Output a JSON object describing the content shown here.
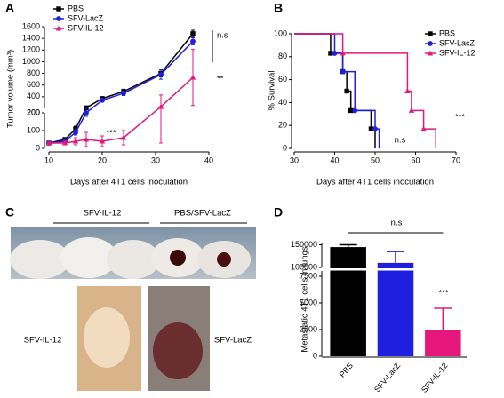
{
  "chart_data": [
    {
      "type": "line",
      "panel": "A",
      "xlabel": "Days after 4T1 cells inoculation",
      "ylabel": "Tumor volume (mm³)",
      "x": [
        10,
        13,
        15,
        17,
        20,
        24,
        31,
        37
      ],
      "xlim": [
        10,
        40
      ],
      "xticks": [
        10,
        20,
        30,
        40
      ],
      "y_segments": [
        {
          "ylim": [
            0,
            200
          ],
          "yticks": [
            0,
            100,
            200
          ]
        },
        {
          "ylim": [
            200,
            1600
          ],
          "yticks": [
            200,
            400,
            600,
            800,
            1000,
            1200,
            1400,
            1600
          ]
        }
      ],
      "series": [
        {
          "name": "PBS",
          "color": "#000000",
          "marker": "square",
          "values": [
            30,
            50,
            110,
            210,
            370,
            490,
            800,
            1480
          ],
          "errors": [
            5,
            10,
            15,
            20,
            25,
            40,
            60,
            60
          ]
        },
        {
          "name": "SFV-LacZ",
          "color": "#1f1fe0",
          "marker": "circle",
          "values": [
            30,
            40,
            90,
            200,
            340,
            460,
            780,
            1350
          ],
          "errors": [
            5,
            10,
            15,
            20,
            25,
            40,
            80,
            60
          ]
        },
        {
          "name": "SFV-IL-12",
          "color": "#e6177b",
          "marker": "triangle",
          "values": [
            30,
            30,
            40,
            50,
            40,
            60,
            230,
            730
          ],
          "errors": [
            5,
            10,
            20,
            40,
            30,
            40,
            200,
            480
          ]
        }
      ],
      "annotations": [
        "n.s",
        "**",
        "***"
      ]
    },
    {
      "type": "step",
      "panel": "B",
      "xlabel": "Days after 4T1 cells inoculation",
      "ylabel": "% Survival",
      "xlim": [
        30,
        70
      ],
      "xticks": [
        30,
        40,
        50,
        60,
        70
      ],
      "ylim": [
        0,
        100
      ],
      "yticks": [
        0,
        20,
        40,
        60,
        80,
        100
      ],
      "series": [
        {
          "name": "PBS",
          "color": "#000000",
          "marker": "square",
          "x": [
            30,
            39,
            42,
            43,
            44,
            49,
            50
          ],
          "values": [
            100,
            83,
            67,
            50,
            33,
            17,
            0
          ]
        },
        {
          "name": "SFV-LacZ",
          "color": "#1f1fe0",
          "marker": "circle",
          "x": [
            30,
            40,
            42,
            45,
            50,
            51
          ],
          "values": [
            100,
            83,
            67,
            33,
            17,
            0
          ]
        },
        {
          "name": "SFV-IL-12",
          "color": "#e6177b",
          "marker": "triangle",
          "x": [
            30,
            42,
            58,
            59,
            62,
            65
          ],
          "values": [
            100,
            83,
            50,
            33,
            17,
            0
          ]
        }
      ],
      "annotations": [
        "n.s",
        "***"
      ]
    },
    {
      "type": "bar",
      "panel": "D",
      "ylabel": "Metastatic 4T1 cells in lungs",
      "categories": [
        "PBS",
        "SFV-LacZ",
        "SFV-IL-12"
      ],
      "values": [
        145000,
        110000,
        2500
      ],
      "errors": [
        5000,
        25000,
        2000
      ],
      "colors": [
        "#000000",
        "#1f1fe0",
        "#e6177b"
      ],
      "y_segments": [
        {
          "ylim": [
            0,
            8000
          ],
          "yticks": [
            0,
            2500,
            5000,
            7500
          ]
        },
        {
          "ylim": [
            100000,
            155000
          ],
          "yticks": [
            100000,
            150000
          ]
        }
      ],
      "annotations": [
        "n.s",
        "***"
      ]
    }
  ],
  "photo_panel": {
    "panel": "C",
    "group_labels": [
      "SFV-IL-12",
      "PBS/SFV-LacZ"
    ],
    "lung_labels": [
      "SFV-IL-12",
      "SFV-LacZ"
    ]
  }
}
